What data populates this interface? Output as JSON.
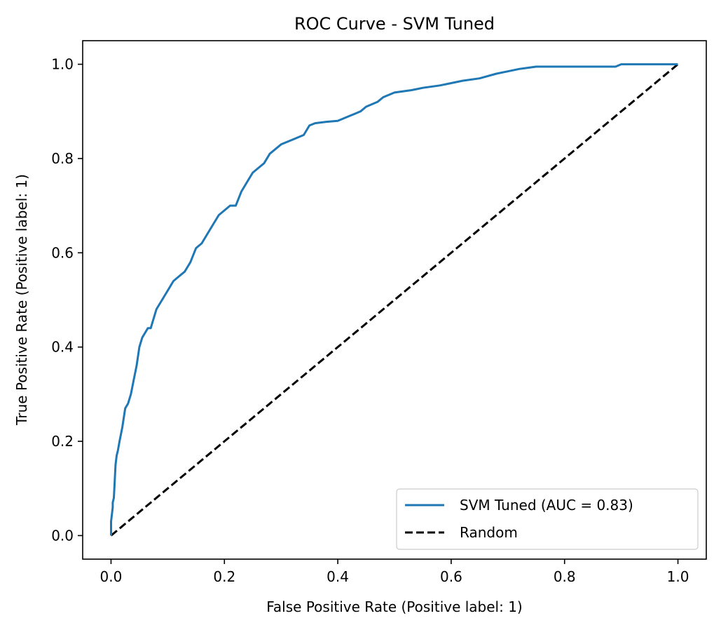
{
  "chart_data": {
    "type": "line",
    "title": "ROC Curve - SVM Tuned",
    "xlabel": "False Positive Rate (Positive label: 1)",
    "ylabel": "True Positive Rate (Positive label: 1)",
    "xlim": [
      -0.05,
      1.05
    ],
    "ylim": [
      -0.05,
      1.05
    ],
    "xticks": [
      0.0,
      0.2,
      0.4,
      0.6,
      0.8,
      1.0
    ],
    "xtick_labels": [
      "0.0",
      "0.2",
      "0.4",
      "0.6",
      "0.8",
      "1.0"
    ],
    "yticks": [
      0.0,
      0.2,
      0.4,
      0.6,
      0.8,
      1.0
    ],
    "ytick_labels": [
      "0.0",
      "0.2",
      "0.4",
      "0.6",
      "0.8",
      "1.0"
    ],
    "grid": false,
    "legend_position": "bottom-right",
    "series": [
      {
        "name": "SVM Tuned (AUC = 0.83)",
        "color": "#1f77b4",
        "line_style": "solid",
        "x": [
          0.0,
          0.0,
          0.003,
          0.003,
          0.005,
          0.008,
          0.01,
          0.012,
          0.015,
          0.02,
          0.025,
          0.03,
          0.035,
          0.04,
          0.045,
          0.05,
          0.055,
          0.06,
          0.065,
          0.07,
          0.08,
          0.09,
          0.1,
          0.11,
          0.12,
          0.13,
          0.14,
          0.15,
          0.16,
          0.17,
          0.18,
          0.19,
          0.2,
          0.21,
          0.22,
          0.23,
          0.24,
          0.25,
          0.26,
          0.27,
          0.28,
          0.3,
          0.32,
          0.34,
          0.35,
          0.36,
          0.38,
          0.4,
          0.42,
          0.44,
          0.45,
          0.47,
          0.48,
          0.5,
          0.53,
          0.55,
          0.58,
          0.6,
          0.62,
          0.65,
          0.68,
          0.7,
          0.72,
          0.75,
          0.8,
          0.85,
          0.89,
          0.9,
          0.95,
          1.0
        ],
        "y": [
          0.0,
          0.03,
          0.06,
          0.07,
          0.08,
          0.15,
          0.17,
          0.18,
          0.2,
          0.23,
          0.27,
          0.28,
          0.3,
          0.33,
          0.36,
          0.4,
          0.42,
          0.43,
          0.44,
          0.44,
          0.48,
          0.5,
          0.52,
          0.54,
          0.55,
          0.56,
          0.58,
          0.61,
          0.62,
          0.64,
          0.66,
          0.68,
          0.69,
          0.7,
          0.7,
          0.73,
          0.75,
          0.77,
          0.78,
          0.79,
          0.81,
          0.83,
          0.84,
          0.85,
          0.87,
          0.875,
          0.878,
          0.88,
          0.89,
          0.9,
          0.91,
          0.92,
          0.93,
          0.94,
          0.945,
          0.95,
          0.955,
          0.96,
          0.965,
          0.97,
          0.98,
          0.985,
          0.99,
          0.995,
          0.995,
          0.995,
          0.995,
          1.0,
          1.0,
          1.0
        ]
      },
      {
        "name": "Random",
        "color": "#000000",
        "line_style": "dashed",
        "x": [
          0.0,
          1.0
        ],
        "y": [
          0.0,
          1.0
        ]
      }
    ]
  }
}
